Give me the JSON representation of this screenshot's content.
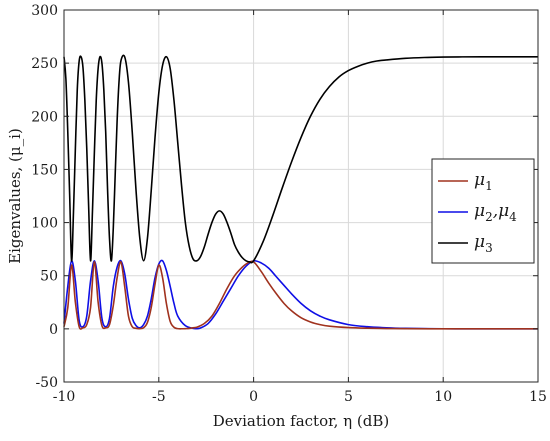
{
  "chart_data": {
    "type": "line",
    "title": "",
    "xlabel": "Deviation factor, η (dB)",
    "ylabel": "Eigenvalues, (μ_i)",
    "xlim": [
      -10,
      15
    ],
    "ylim": [
      -50,
      300
    ],
    "xticks": [
      -10,
      -5,
      0,
      5,
      10,
      15
    ],
    "yticks": [
      -50,
      0,
      50,
      100,
      150,
      200,
      250,
      300
    ],
    "xtick_labels": [
      "-10",
      "-5",
      "0",
      "5",
      "10",
      "15"
    ],
    "ytick_labels": [
      "-50",
      "0",
      "50",
      "100",
      "150",
      "200",
      "250",
      "300"
    ],
    "grid": true,
    "legend_position": "right-middle",
    "series": [
      {
        "name": "μ1",
        "legend_base": "μ",
        "legend_sub": "1",
        "color": "#a0321e",
        "x": [
          -10,
          -9.8,
          -9.6,
          -9.4,
          -9.2,
          -9.0,
          -8.8,
          -8.6,
          -8.4,
          -8.2,
          -8.0,
          -7.8,
          -7.6,
          -7.4,
          -7.2,
          -7.0,
          -6.8,
          -6.6,
          -6.4,
          -6.2,
          -6.0,
          -5.8,
          -5.6,
          -5.4,
          -5.2,
          -5.0,
          -4.8,
          -4.6,
          -4.4,
          -4.2,
          -4.0,
          -3.8,
          -3.6,
          -3.4,
          -3.2,
          -3.0,
          -2.6,
          -2.2,
          -1.8,
          -1.4,
          -1.0,
          -0.6,
          -0.3,
          0,
          0.4,
          0.8,
          1.2,
          1.6,
          2.0,
          2.5,
          3.0,
          3.5,
          4.0,
          5.0,
          6.0,
          7.0,
          8.0,
          10.0,
          12.0,
          15.0
        ],
        "y": [
          2,
          20,
          60,
          25,
          2,
          1,
          4,
          20,
          63,
          25,
          3,
          1,
          4,
          22,
          48,
          63,
          40,
          12,
          2,
          0.5,
          0.2,
          1,
          6,
          20,
          42,
          60,
          48,
          24,
          7,
          1.5,
          0.2,
          0.1,
          0.2,
          0.4,
          1,
          1.5,
          5,
          12,
          24,
          38,
          50,
          58,
          62,
          63,
          54,
          43,
          33,
          24,
          17,
          10.5,
          6.5,
          4,
          2.5,
          1.2,
          0.6,
          0.3,
          0.15,
          0.05,
          0.02,
          0
        ]
      },
      {
        "name": "μ2,μ4",
        "legend_base": "μ",
        "legend_sub": "2",
        "legend_mid": ",μ",
        "legend_sub2": "4",
        "color": "#0f0fe6",
        "x": [
          -10,
          -9.8,
          -9.6,
          -9.4,
          -9.2,
          -9.0,
          -8.8,
          -8.6,
          -8.4,
          -8.2,
          -8.0,
          -7.8,
          -7.6,
          -7.4,
          -7.2,
          -7.0,
          -6.8,
          -6.6,
          -6.4,
          -6.2,
          -6.0,
          -5.8,
          -5.6,
          -5.4,
          -5.2,
          -5.0,
          -4.8,
          -4.6,
          -4.4,
          -4.2,
          -4.0,
          -3.6,
          -3.2,
          -3.0,
          -2.8,
          -2.4,
          -2.0,
          -1.6,
          -1.2,
          -0.8,
          -0.4,
          0,
          0.4,
          0.8,
          1.2,
          1.6,
          2.0,
          2.5,
          3.0,
          3.5,
          4.0,
          5.0,
          6.0,
          7.0,
          8.0,
          10.0,
          12.0,
          15.0
        ],
        "y": [
          5,
          40,
          64,
          45,
          8,
          2,
          12,
          45,
          64,
          45,
          10,
          2,
          10,
          40,
          58,
          64,
          52,
          28,
          10,
          3,
          1,
          4,
          12,
          28,
          48,
          61,
          64,
          55,
          40,
          24,
          12,
          3,
          0.5,
          0.2,
          0.8,
          5,
          14,
          26,
          38,
          50,
          59,
          64,
          62,
          57,
          49,
          41,
          33,
          24,
          17,
          12,
          8.5,
          4,
          2,
          1,
          0.5,
          0.1,
          0.05,
          0
        ]
      },
      {
        "name": "μ3",
        "legend_base": "μ",
        "legend_sub": "3",
        "color": "#000000",
        "x": [
          -10,
          -9.9,
          -9.8,
          -9.7,
          -9.6,
          -9.5,
          -9.4,
          -9.3,
          -9.2,
          -9.1,
          -9.0,
          -8.9,
          -8.8,
          -8.7,
          -8.6,
          -8.5,
          -8.4,
          -8.3,
          -8.2,
          -8.1,
          -8.0,
          -7.9,
          -7.8,
          -7.7,
          -7.6,
          -7.5,
          -7.4,
          -7.3,
          -7.2,
          -7.1,
          -7.0,
          -6.8,
          -6.6,
          -6.4,
          -6.2,
          -6.0,
          -5.8,
          -5.6,
          -5.4,
          -5.2,
          -5.0,
          -4.8,
          -4.6,
          -4.4,
          -4.2,
          -4.0,
          -3.8,
          -3.6,
          -3.4,
          -3.2,
          -3.0,
          -2.8,
          -2.6,
          -2.4,
          -2.2,
          -2.0,
          -1.8,
          -1.6,
          -1.4,
          -1.2,
          -1.0,
          -0.8,
          -0.6,
          -0.4,
          -0.2,
          0,
          0.5,
          1.0,
          1.5,
          2.0,
          2.5,
          3.0,
          3.5,
          4.0,
          4.5,
          5.0,
          5.5,
          6.0,
          6.5,
          7.0,
          8.0,
          9.0,
          10.0,
          11.0,
          12.0,
          13.0,
          14.0,
          15.0
        ],
        "y": [
          256,
          235,
          185,
          125,
          64,
          110,
          170,
          225,
          252,
          256,
          246,
          215,
          170,
          115,
          64,
          110,
          165,
          215,
          245,
          256,
          250,
          225,
          185,
          130,
          85,
          64,
          95,
          145,
          195,
          232,
          252,
          256,
          232,
          185,
          130,
          85,
          64,
          85,
          130,
          180,
          222,
          248,
          256,
          245,
          215,
          175,
          135,
          100,
          78,
          66,
          64,
          68,
          77,
          89,
          100,
          108,
          111,
          108,
          100,
          90,
          79,
          72,
          67,
          64,
          63,
          64,
          82,
          106,
          132,
          157,
          180,
          200,
          216,
          228,
          237,
          243,
          247,
          250,
          252,
          253,
          254.5,
          255.3,
          255.7,
          255.9,
          256,
          256,
          256,
          256
        ]
      }
    ]
  }
}
